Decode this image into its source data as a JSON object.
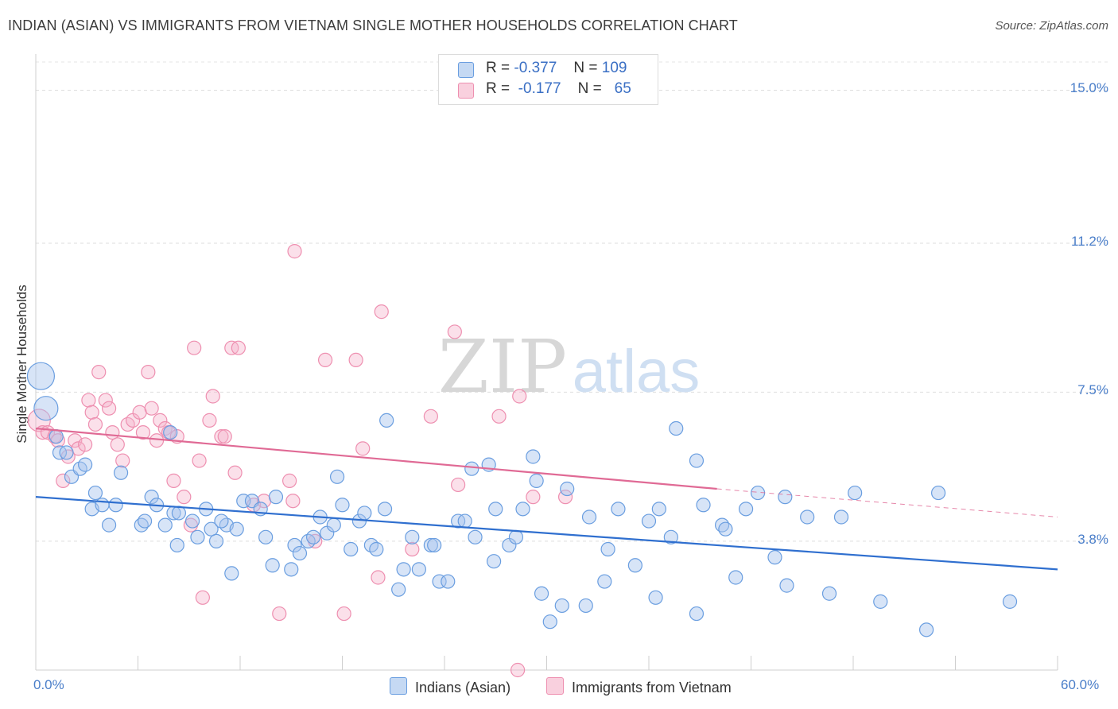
{
  "title": "INDIAN (ASIAN) VS IMMIGRANTS FROM VIETNAM SINGLE MOTHER HOUSEHOLDS CORRELATION CHART",
  "source": "Source: ZipAtlas.com",
  "watermark": {
    "zip": "ZIP",
    "atlas": "atlas"
  },
  "legend": {
    "series1": {
      "r_label": "R =",
      "r_value": "-0.377",
      "n_label": "N =",
      "n_value": "109",
      "color": "#6a9ee0"
    },
    "series2": {
      "r_label": "R =",
      "r_value": "-0.177",
      "n_label": "N =",
      "n_value": "65",
      "color": "#ee8fb0"
    }
  },
  "bottom_legend": {
    "series1": "Indians (Asian)",
    "series2": "Immigrants from Vietnam"
  },
  "chart_data": {
    "type": "scatter",
    "title": "INDIAN (ASIAN) VS IMMIGRANTS FROM VIETNAM SINGLE MOTHER HOUSEHOLDS CORRELATION CHART",
    "xlabel": "",
    "ylabel": "Single Mother Households",
    "xlim": [
      0,
      60
    ],
    "ylim": [
      0.6,
      15.7
    ],
    "x_tick_labels": [
      "0.0%",
      "60.0%"
    ],
    "y_tick_values": [
      3.8,
      7.5,
      11.2,
      15.0
    ],
    "y_tick_labels": [
      "3.8%",
      "7.5%",
      "11.2%",
      "15.0%"
    ],
    "grid": "horizontal dashed",
    "legend_position": "top-center",
    "series": [
      {
        "name": "Indians (Asian)",
        "color": "#6a9ee0",
        "trend": {
          "x": [
            0,
            60
          ],
          "y": [
            4.9,
            3.1
          ]
        },
        "points": [
          [
            0.3,
            7.9
          ],
          [
            0.6,
            7.1
          ],
          [
            1.2,
            6.4
          ],
          [
            1.4,
            6.0
          ],
          [
            1.8,
            6.0
          ],
          [
            2.1,
            5.4
          ],
          [
            2.6,
            5.6
          ],
          [
            2.9,
            5.7
          ],
          [
            3.5,
            5.0
          ],
          [
            3.3,
            4.6
          ],
          [
            4.7,
            4.7
          ],
          [
            4.3,
            4.2
          ],
          [
            5.0,
            5.5
          ],
          [
            6.2,
            4.2
          ],
          [
            6.4,
            4.3
          ],
          [
            6.8,
            4.9
          ],
          [
            7.1,
            4.7
          ],
          [
            7.6,
            4.2
          ],
          [
            7.9,
            6.5
          ],
          [
            8.1,
            4.5
          ],
          [
            8.4,
            4.5
          ],
          [
            8.3,
            3.7
          ],
          [
            9.2,
            4.3
          ],
          [
            9.5,
            3.9
          ],
          [
            10.0,
            4.6
          ],
          [
            10.3,
            4.1
          ],
          [
            10.6,
            3.8
          ],
          [
            11.2,
            4.2
          ],
          [
            11.5,
            3.0
          ],
          [
            11.8,
            4.1
          ],
          [
            12.2,
            4.8
          ],
          [
            12.7,
            4.8
          ],
          [
            13.2,
            4.6
          ],
          [
            13.5,
            3.9
          ],
          [
            13.9,
            3.2
          ],
          [
            14.1,
            4.9
          ],
          [
            15.0,
            3.1
          ],
          [
            15.2,
            3.7
          ],
          [
            15.5,
            3.5
          ],
          [
            16.0,
            3.8
          ],
          [
            16.3,
            3.9
          ],
          [
            16.7,
            4.4
          ],
          [
            17.1,
            4.0
          ],
          [
            17.5,
            4.2
          ],
          [
            17.7,
            5.4
          ],
          [
            18.0,
            4.7
          ],
          [
            18.5,
            3.6
          ],
          [
            19.0,
            4.3
          ],
          [
            19.3,
            4.5
          ],
          [
            19.7,
            3.7
          ],
          [
            20.0,
            3.6
          ],
          [
            20.5,
            4.6
          ],
          [
            20.6,
            6.8
          ],
          [
            21.3,
            2.6
          ],
          [
            21.6,
            3.1
          ],
          [
            22.1,
            3.9
          ],
          [
            22.5,
            3.1
          ],
          [
            23.2,
            3.7
          ],
          [
            23.4,
            3.7
          ],
          [
            23.7,
            2.8
          ],
          [
            24.2,
            2.8
          ],
          [
            24.8,
            4.3
          ],
          [
            25.2,
            4.3
          ],
          [
            25.6,
            5.6
          ],
          [
            25.8,
            3.9
          ],
          [
            26.6,
            5.7
          ],
          [
            26.9,
            3.3
          ],
          [
            27.0,
            4.6
          ],
          [
            27.8,
            3.7
          ],
          [
            28.2,
            3.9
          ],
          [
            28.6,
            4.6
          ],
          [
            29.2,
            5.9
          ],
          [
            29.4,
            5.3
          ],
          [
            29.7,
            2.5
          ],
          [
            30.2,
            1.8
          ],
          [
            30.9,
            2.2
          ],
          [
            31.2,
            5.1
          ],
          [
            32.3,
            2.2
          ],
          [
            32.5,
            4.4
          ],
          [
            33.4,
            2.8
          ],
          [
            33.6,
            3.6
          ],
          [
            34.2,
            4.6
          ],
          [
            35.2,
            3.2
          ],
          [
            36.0,
            4.3
          ],
          [
            36.4,
            2.4
          ],
          [
            36.6,
            4.6
          ],
          [
            37.3,
            3.9
          ],
          [
            37.6,
            6.6
          ],
          [
            38.8,
            2.0
          ],
          [
            38.8,
            5.8
          ],
          [
            39.2,
            4.7
          ],
          [
            40.3,
            4.2
          ],
          [
            40.5,
            4.1
          ],
          [
            41.1,
            2.9
          ],
          [
            41.7,
            4.6
          ],
          [
            42.4,
            5.0
          ],
          [
            43.4,
            3.4
          ],
          [
            44.0,
            4.9
          ],
          [
            44.1,
            2.7
          ],
          [
            45.3,
            4.4
          ],
          [
            46.6,
            2.5
          ],
          [
            47.3,
            4.4
          ],
          [
            48.1,
            5.0
          ],
          [
            49.6,
            2.3
          ],
          [
            52.3,
            1.6
          ],
          [
            53.0,
            5.0
          ],
          [
            57.2,
            2.3
          ],
          [
            3.9,
            4.7
          ],
          [
            10.9,
            4.3
          ]
        ]
      },
      {
        "name": "Immigrants from Vietnam",
        "color": "#ee8fb0",
        "trend": {
          "x": [
            0,
            40
          ],
          "y": [
            6.6,
            5.1
          ]
        },
        "trend_dashed": {
          "x": [
            40,
            60
          ],
          "y": [
            5.1,
            4.4
          ]
        },
        "points": [
          [
            0.2,
            6.8
          ],
          [
            0.4,
            6.5
          ],
          [
            0.7,
            6.5
          ],
          [
            1.1,
            6.4
          ],
          [
            1.3,
            6.3
          ],
          [
            1.6,
            5.3
          ],
          [
            1.9,
            5.9
          ],
          [
            2.3,
            6.3
          ],
          [
            2.5,
            6.1
          ],
          [
            2.9,
            6.2
          ],
          [
            3.1,
            7.3
          ],
          [
            3.3,
            7.0
          ],
          [
            3.5,
            6.7
          ],
          [
            3.7,
            8.0
          ],
          [
            4.1,
            7.3
          ],
          [
            4.3,
            7.1
          ],
          [
            4.5,
            6.5
          ],
          [
            4.8,
            6.2
          ],
          [
            5.1,
            5.8
          ],
          [
            5.4,
            6.7
          ],
          [
            5.7,
            6.8
          ],
          [
            6.1,
            7.0
          ],
          [
            6.3,
            6.5
          ],
          [
            6.6,
            8.0
          ],
          [
            6.8,
            7.1
          ],
          [
            7.1,
            6.3
          ],
          [
            7.3,
            6.8
          ],
          [
            7.6,
            6.6
          ],
          [
            7.8,
            6.5
          ],
          [
            8.1,
            5.3
          ],
          [
            8.3,
            6.4
          ],
          [
            8.7,
            4.9
          ],
          [
            9.1,
            4.2
          ],
          [
            9.3,
            8.6
          ],
          [
            9.6,
            5.8
          ],
          [
            9.8,
            2.4
          ],
          [
            10.2,
            6.8
          ],
          [
            10.4,
            7.4
          ],
          [
            10.9,
            6.4
          ],
          [
            11.1,
            6.4
          ],
          [
            11.5,
            8.6
          ],
          [
            11.7,
            5.5
          ],
          [
            11.9,
            8.6
          ],
          [
            12.8,
            4.7
          ],
          [
            13.4,
            4.8
          ],
          [
            14.3,
            2.0
          ],
          [
            14.9,
            5.3
          ],
          [
            15.1,
            4.8
          ],
          [
            15.2,
            11.0
          ],
          [
            16.4,
            3.8
          ],
          [
            17.0,
            8.3
          ],
          [
            18.1,
            2.0
          ],
          [
            18.8,
            8.3
          ],
          [
            19.2,
            6.1
          ],
          [
            20.1,
            2.9
          ],
          [
            20.3,
            9.5
          ],
          [
            22.1,
            3.6
          ],
          [
            23.2,
            6.9
          ],
          [
            24.6,
            9.0
          ],
          [
            24.8,
            5.2
          ],
          [
            27.2,
            6.9
          ],
          [
            28.3,
            0.6
          ],
          [
            28.4,
            7.4
          ],
          [
            29.2,
            4.9
          ],
          [
            31.1,
            4.9
          ]
        ]
      }
    ]
  }
}
